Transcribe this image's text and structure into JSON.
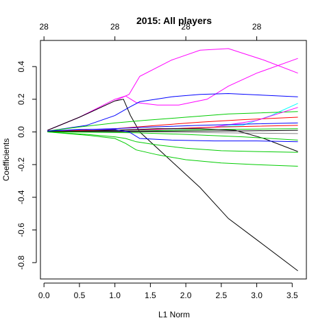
{
  "chart_data": {
    "type": "line",
    "title": "2015: All players",
    "xlabel": "L1 Norm",
    "ylabel": "Coefficients",
    "xlim": [
      -0.05,
      3.7
    ],
    "ylim": [
      -0.9,
      0.56
    ],
    "x_ticks": [
      0.0,
      0.5,
      1.0,
      1.5,
      2.0,
      2.5,
      3.0,
      3.5
    ],
    "x_tick_labels": [
      "0.0",
      "0.5",
      "1.0",
      "1.5",
      "2.0",
      "2.5",
      "3.0",
      "3.5"
    ],
    "y_ticks": [
      -0.8,
      -0.6,
      -0.4,
      -0.2,
      0.0,
      0.2,
      0.4
    ],
    "y_tick_labels": [
      "-0.8",
      "-0.6",
      "-0.4",
      "-0.2",
      "0.0",
      "0.2",
      "0.4"
    ],
    "top_axis": {
      "ticks": [
        0.0,
        1.0,
        2.0,
        3.0
      ],
      "labels": [
        "28",
        "28",
        "28",
        "28"
      ]
    },
    "grid": false,
    "series": [
      {
        "color": "#ff00ff",
        "x": [
          0.05,
          0.5,
          1.0,
          1.2,
          1.35,
          1.8,
          2.2,
          2.6,
          3.1,
          3.58
        ],
        "y": [
          0.01,
          0.09,
          0.19,
          0.23,
          0.34,
          0.44,
          0.5,
          0.51,
          0.44,
          0.36
        ]
      },
      {
        "color": "#ff00ff",
        "x": [
          0.05,
          0.5,
          1.0,
          1.15,
          1.3,
          1.6,
          1.9,
          2.3,
          2.6,
          3.0,
          3.58
        ],
        "y": [
          0.01,
          0.09,
          0.2,
          0.22,
          0.18,
          0.165,
          0.165,
          0.2,
          0.28,
          0.36,
          0.45
        ]
      },
      {
        "color": "#000000",
        "x": [
          0.05,
          0.5,
          1.0,
          1.12,
          1.22,
          1.35,
          1.8,
          2.2,
          2.6,
          3.0,
          3.58
        ],
        "y": [
          0.01,
          0.09,
          0.19,
          0.2,
          0.1,
          0.0,
          -0.18,
          -0.34,
          -0.53,
          -0.66,
          -0.85
        ]
      },
      {
        "color": "#0000ff",
        "x": [
          0.05,
          0.6,
          1.0,
          1.2,
          1.35,
          1.8,
          2.2,
          2.6,
          3.58
        ],
        "y": [
          0.005,
          0.04,
          0.1,
          0.15,
          0.185,
          0.215,
          0.23,
          0.235,
          0.215
        ]
      },
      {
        "color": "#00ffff",
        "x": [
          0.05,
          1.0,
          2.0,
          2.8,
          3.2,
          3.58
        ],
        "y": [
          0.003,
          0.01,
          0.02,
          0.04,
          0.1,
          0.175
        ]
      },
      {
        "color": "#00cc00",
        "x": [
          0.05,
          0.5,
          1.0,
          1.4,
          2.0,
          2.6,
          3.58
        ],
        "y": [
          0.005,
          0.03,
          0.055,
          0.07,
          0.09,
          0.11,
          0.125
        ]
      },
      {
        "color": "#ff0000",
        "x": [
          0.05,
          1.0,
          1.6,
          2.2,
          2.8,
          3.58
        ],
        "y": [
          0.003,
          0.02,
          0.04,
          0.06,
          0.075,
          0.09
        ]
      },
      {
        "color": "#ff00ff",
        "x": [
          0.05,
          1.0,
          1.6,
          2.4,
          3.0,
          3.58
        ],
        "y": [
          0.003,
          0.01,
          0.015,
          0.03,
          0.07,
          0.15
        ]
      },
      {
        "color": "#0000ff",
        "x": [
          0.05,
          0.6,
          1.0,
          1.5,
          2.2,
          3.0,
          3.58
        ],
        "y": [
          0.005,
          0.015,
          0.02,
          0.03,
          0.04,
          0.05,
          0.055
        ]
      },
      {
        "color": "#ff0000",
        "x": [
          0.05,
          0.6,
          1.1,
          1.8,
          2.5,
          3.58
        ],
        "y": [
          0.003,
          0.008,
          0.012,
          0.02,
          0.03,
          0.04
        ]
      },
      {
        "color": "#00cc00",
        "x": [
          0.05,
          1.2,
          1.8,
          2.5,
          3.58
        ],
        "y": [
          0.002,
          0.005,
          0.01,
          0.015,
          0.02
        ]
      },
      {
        "color": "#000000",
        "x": [
          0.05,
          1.2,
          2.0,
          2.8,
          3.58
        ],
        "y": [
          0.002,
          0.004,
          0.005,
          0.006,
          0.01
        ]
      },
      {
        "color": "#808080",
        "x": [
          0.05,
          1.5,
          2.5,
          3.58
        ],
        "y": [
          0.0,
          0.0,
          -0.005,
          -0.01
        ]
      },
      {
        "color": "#000000",
        "x": [
          0.05,
          1.0,
          1.6,
          2.2,
          2.7,
          3.1,
          3.58
        ],
        "y": [
          0.0,
          0.01,
          0.02,
          0.02,
          0.01,
          -0.04,
          -0.12
        ]
      },
      {
        "color": "#00cc00",
        "x": [
          0.05,
          1.3,
          2.0,
          2.8,
          3.58
        ],
        "y": [
          0.0,
          -0.005,
          -0.015,
          -0.03,
          -0.05
        ]
      },
      {
        "color": "#0000ff",
        "x": [
          0.05,
          0.5,
          1.0,
          1.2,
          1.35,
          1.8,
          2.4,
          3.0,
          3.58
        ],
        "y": [
          0.005,
          0.015,
          0.015,
          0.0,
          -0.04,
          -0.05,
          -0.055,
          -0.055,
          -0.06
        ]
      },
      {
        "color": "#00cc00",
        "x": [
          0.05,
          0.6,
          1.0,
          1.15,
          1.3,
          1.6,
          2.0,
          2.5,
          3.0,
          3.58
        ],
        "y": [
          0.0,
          -0.015,
          -0.03,
          -0.04,
          -0.06,
          -0.08,
          -0.1,
          -0.115,
          -0.12,
          -0.125
        ]
      },
      {
        "color": "#00cc00",
        "x": [
          0.05,
          0.6,
          1.0,
          1.15,
          1.3,
          1.6,
          2.0,
          2.5,
          3.0,
          3.58
        ],
        "y": [
          0.0,
          -0.02,
          -0.04,
          -0.07,
          -0.11,
          -0.14,
          -0.17,
          -0.19,
          -0.2,
          -0.21
        ]
      }
    ]
  }
}
